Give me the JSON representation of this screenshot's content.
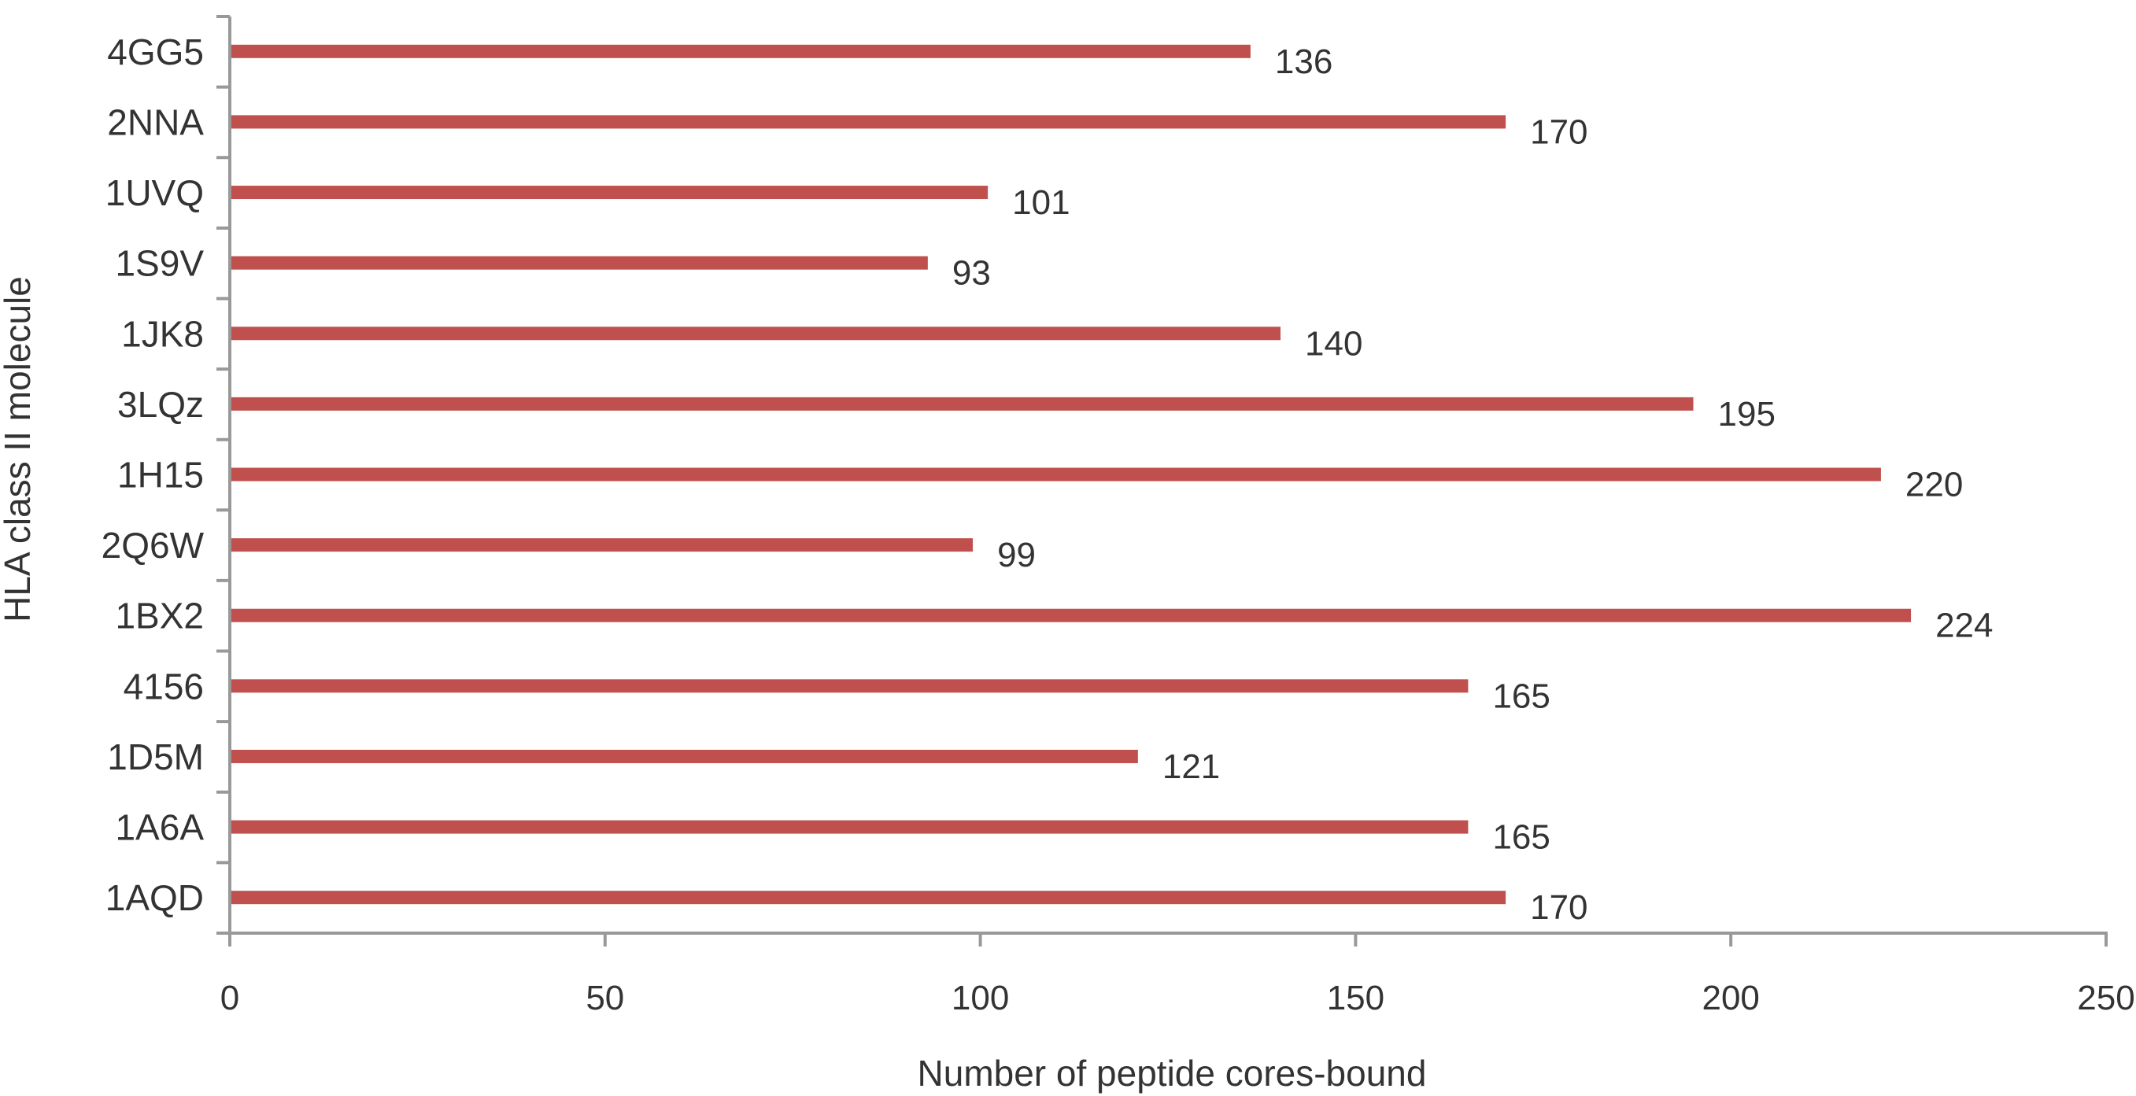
{
  "chart_data": {
    "type": "bar",
    "orientation": "horizontal",
    "title": "",
    "xlabel": "Number of peptide cores-bound",
    "ylabel": "HLA class II molecule",
    "categories": [
      "4GG5",
      "2NNA",
      "1UVQ",
      "1S9V",
      "1JK8",
      "3LQz",
      "1H15",
      "2Q6W",
      "1BX2",
      "4156",
      "1D5M",
      "1A6A",
      "1AQD"
    ],
    "values": [
      136,
      170,
      101,
      93,
      140,
      195,
      220,
      99,
      224,
      165,
      121,
      165,
      170
    ],
    "xlim": [
      0,
      250
    ],
    "xticks": [
      "0",
      "50",
      "100",
      "150",
      "200",
      "250"
    ],
    "grid": false,
    "legend": "none",
    "data_labels": true,
    "colors": {
      "bar": "#C0504D",
      "axis": "#999999",
      "text": "#333333"
    }
  }
}
